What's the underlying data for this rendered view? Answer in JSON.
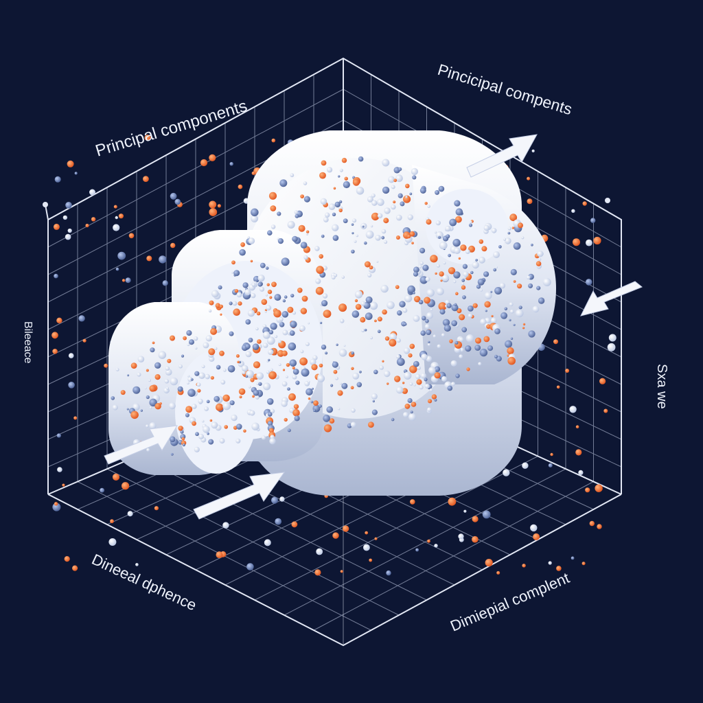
{
  "labels": {
    "top_left": "Principal components",
    "top_right": "Pincicipal compents",
    "left": "Bileeace",
    "right": "Sxa we",
    "bottom_left": "Dineeal dphence",
    "bottom_right": "Dimiepial complent"
  },
  "colors": {
    "background": "#0d1633",
    "grid": "#c9d2ea",
    "cylinder": "#eef2fb",
    "particle_orange": "#ef6a2c",
    "particle_white": "#f1f4fb",
    "particle_blue": "#7d94c8",
    "arrow": "#f4f6fb"
  },
  "icons": [
    "arrow-right-icon",
    "arrow-left-icon"
  ]
}
